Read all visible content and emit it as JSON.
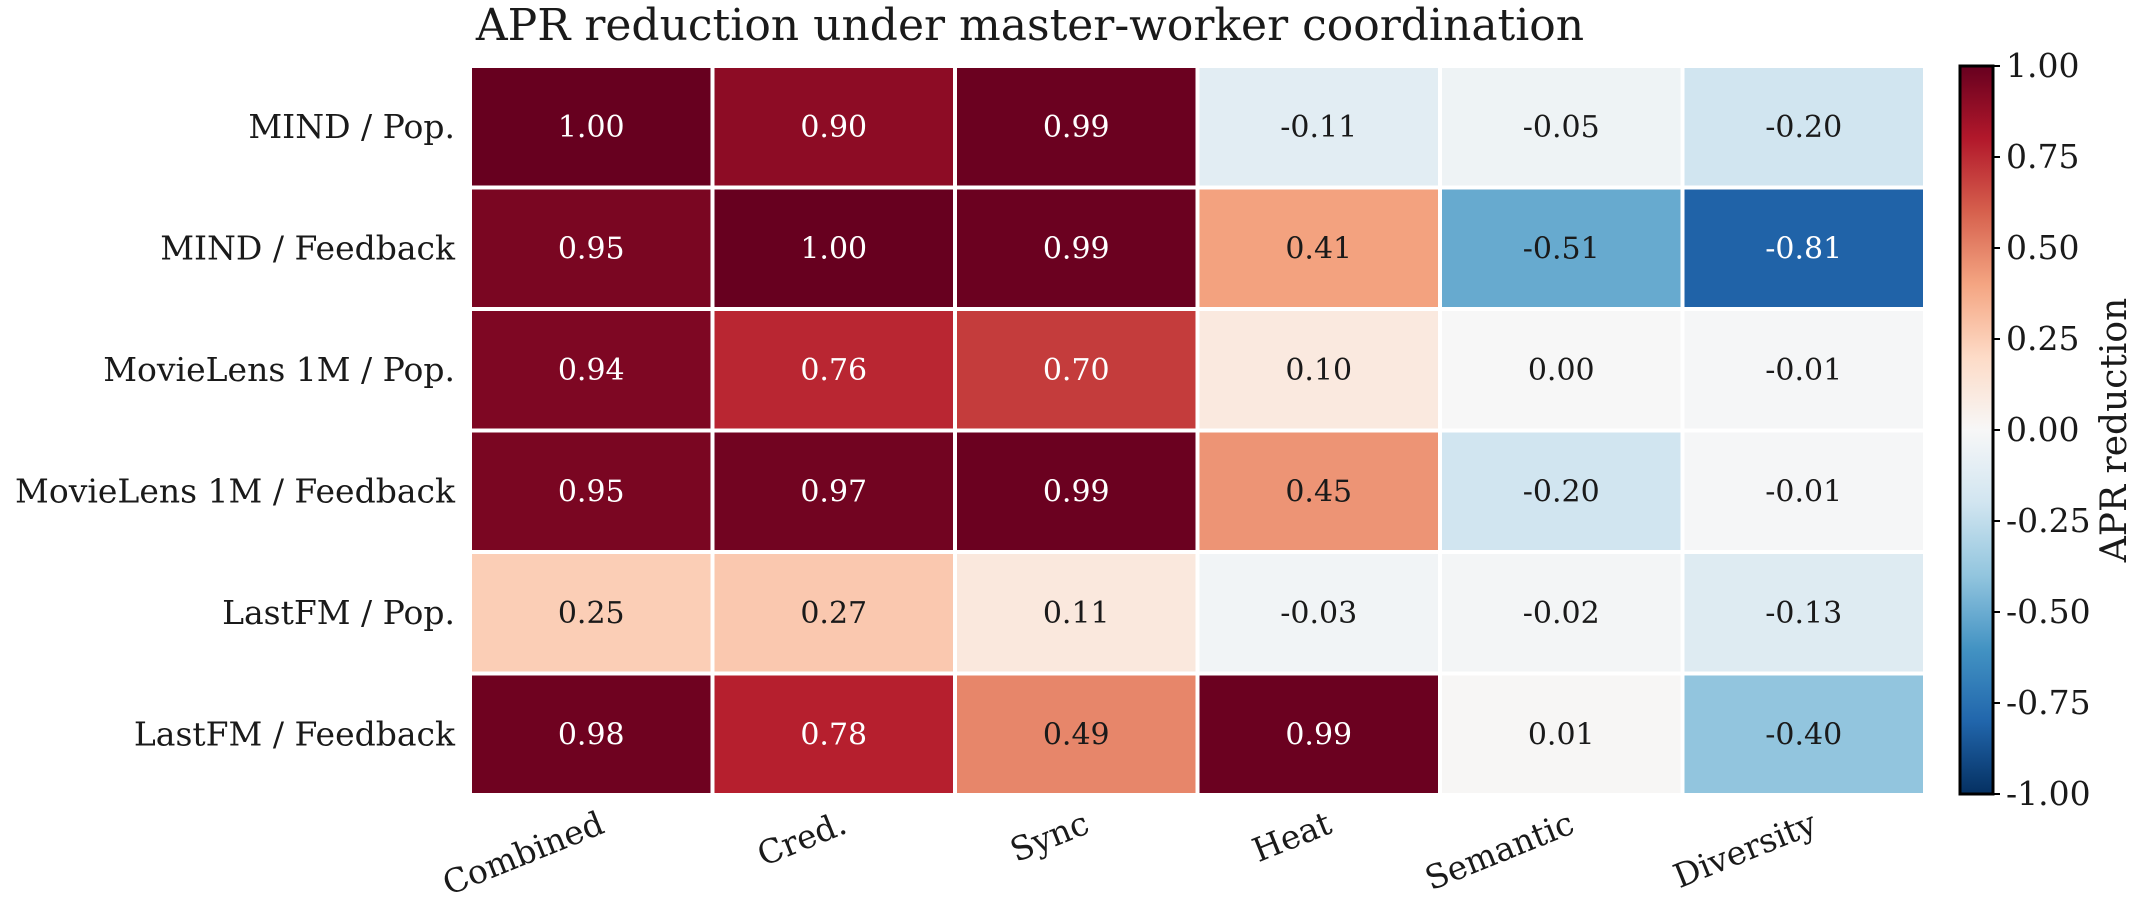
{
  "chart_data": {
    "type": "heatmap",
    "title": "APR reduction under master-worker coordination",
    "rows": [
      "MIND / Pop.",
      "MIND / Feedback",
      "MovieLens 1M / Pop.",
      "MovieLens 1M / Feedback",
      "LastFM / Pop.",
      "LastFM / Feedback"
    ],
    "columns": [
      "Combined",
      "Cred.",
      "Sync",
      "Heat",
      "Semantic",
      "Diversity"
    ],
    "values": [
      [
        1.0,
        0.9,
        0.99,
        -0.11,
        -0.05,
        -0.2
      ],
      [
        0.95,
        1.0,
        0.99,
        0.41,
        -0.51,
        -0.81
      ],
      [
        0.94,
        0.76,
        0.7,
        0.1,
        0.0,
        -0.01
      ],
      [
        0.95,
        0.97,
        0.99,
        0.45,
        -0.2,
        -0.01
      ],
      [
        0.25,
        0.27,
        0.11,
        -0.03,
        -0.02,
        -0.13
      ],
      [
        0.98,
        0.78,
        0.49,
        0.99,
        0.01,
        -0.4
      ]
    ],
    "value_labels": [
      [
        "1.00",
        "0.90",
        "0.99",
        "-0.11",
        "-0.05",
        "-0.20"
      ],
      [
        "0.95",
        "1.00",
        "0.99",
        "0.41",
        "-0.51",
        "-0.81"
      ],
      [
        "0.94",
        "0.76",
        "0.70",
        "0.10",
        "0.00",
        "-0.01"
      ],
      [
        "0.95",
        "0.97",
        "0.99",
        "0.45",
        "-0.20",
        "-0.01"
      ],
      [
        "0.25",
        "0.27",
        "0.11",
        "-0.03",
        "-0.02",
        "-0.13"
      ],
      [
        "0.98",
        "0.78",
        "0.49",
        "0.99",
        "0.01",
        "-0.40"
      ]
    ],
    "colormap": "RdBu_r",
    "vmin": -1.0,
    "vmax": 1.0,
    "colorbar": {
      "label": "APR reduction",
      "ticks": [
        1.0,
        0.75,
        0.5,
        0.25,
        0.0,
        -0.25,
        -0.5,
        -0.75,
        -1.0
      ],
      "tick_labels": [
        "1.00",
        "0.75",
        "0.50",
        "0.25",
        "0.00",
        "-0.25",
        "-0.50",
        "-0.75",
        "-1.00"
      ],
      "position": "right"
    },
    "grid": false
  }
}
